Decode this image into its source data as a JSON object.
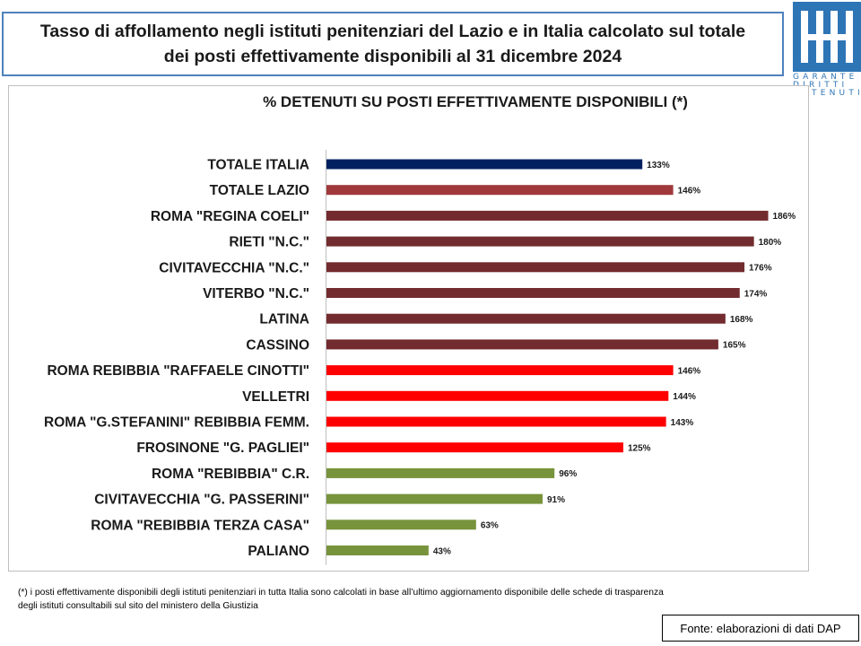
{
  "header": {
    "title_line1": "Tasso di affollamento negli istituti penitenziari del Lazio e in Italia calcolato sul totale",
    "title_line2": "dei posti effettivamente disponibili al 31 dicembre 2024"
  },
  "logo": {
    "line1": "GARANTE",
    "line2": "DIRITTI",
    "line3": "DETENUTI"
  },
  "colors": {
    "italia": "#002060",
    "lazio": "#a0393c",
    "dark_red": "#722b2e",
    "red": "#ff0000",
    "green": "#77933c",
    "logo_blue": "#2e75b6"
  },
  "chart_data": {
    "type": "bar",
    "orientation": "horizontal",
    "title": "% DETENUTI SU POSTI EFFETTIVAMENTE DISPONIBILI (*)",
    "xlabel": "",
    "ylabel": "",
    "xlim": [
      0,
      200
    ],
    "grid": false,
    "legend": "none",
    "categories": [
      "TOTALE ITALIA",
      "TOTALE LAZIO",
      "ROMA \"REGINA COELI\"",
      "RIETI \"N.C.\"",
      "CIVITAVECCHIA \"N.C.\"",
      "VITERBO \"N.C.\"",
      "LATINA",
      "CASSINO",
      "ROMA REBIBBIA \"RAFFAELE CINOTTI\"",
      "VELLETRI",
      "ROMA \"G.STEFANINI\" REBIBBIA FEMM.",
      "FROSINONE \"G. PAGLIEI\"",
      "ROMA \"REBIBBIA\" C.R.",
      "CIVITAVECCHIA \"G. PASSERINI\"",
      "ROMA \"REBIBBIA TERZA CASA\"",
      "PALIANO"
    ],
    "values": [
      133,
      146,
      186,
      180,
      176,
      174,
      168,
      165,
      146,
      144,
      143,
      125,
      96,
      91,
      63,
      43
    ],
    "data_labels": [
      "133%",
      "146%",
      "186%",
      "180%",
      "176%",
      "174%",
      "168%",
      "165%",
      "146%",
      "144%",
      "143%",
      "125%",
      "96%",
      "91%",
      "63%",
      "43%"
    ],
    "bar_colors": [
      "#002060",
      "#a0393c",
      "#722b2e",
      "#722b2e",
      "#722b2e",
      "#722b2e",
      "#722b2e",
      "#722b2e",
      "#ff0000",
      "#ff0000",
      "#ff0000",
      "#ff0000",
      "#77933c",
      "#77933c",
      "#77933c",
      "#77933c"
    ]
  },
  "footnote": {
    "line1": "(*) i posti effettivamente disponibili  degli istituti penitenziari in tutta Italia sono calcolati in base all’ultimo aggiornamento disponibile  delle schede di trasparenza",
    "line2": "degli istituti consultabili sul sito del ministero della Giustizia"
  },
  "source": {
    "text": "Fonte: elaborazioni di dati DAP"
  }
}
